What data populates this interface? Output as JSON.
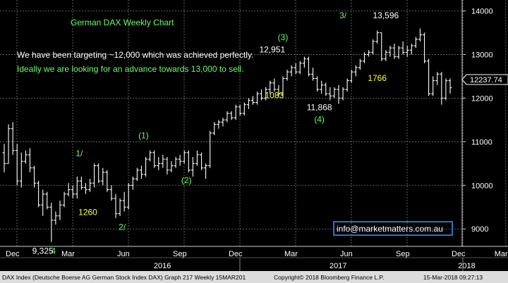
{
  "chart_data": {
    "type": "candlestick",
    "title": "German DAX Weekly Chart",
    "subtitle_lines": [
      "We have been targeting ~12,000 which was achieved perfectly.",
      "Ideally we are looking for an advance towards 13,000 to sell."
    ],
    "y_ticks": [
      "14000",
      "13000",
      "12000",
      "11000",
      "10000",
      "9000"
    ],
    "ylim": [
      8600,
      14250
    ],
    "x_month_labels": [
      "Dec",
      "Mar",
      "Jun",
      "Sep",
      "Dec",
      "Mar",
      "Jun",
      "Sep",
      "Dec",
      "Mar"
    ],
    "x_year_labels": [
      "2016",
      "2017",
      "2018"
    ],
    "last_price_label": "12237.74",
    "grid": true,
    "series": [
      [
        10750,
        10950,
        10300,
        10500
      ],
      [
        10500,
        11400,
        10500,
        11300
      ],
      [
        11300,
        11450,
        10700,
        10800
      ],
      [
        10800,
        10950,
        10000,
        10100
      ],
      [
        10100,
        10750,
        9950,
        10550
      ],
      [
        10550,
        10800,
        10500,
        10700
      ],
      [
        10700,
        10850,
        10300,
        10400
      ],
      [
        10400,
        10450,
        9950,
        10050
      ],
      [
        10050,
        10100,
        9500,
        9550
      ],
      [
        9550,
        9900,
        9300,
        9800
      ],
      [
        9800,
        9850,
        9450,
        9500
      ],
      [
        9500,
        9600,
        8700,
        9200
      ],
      [
        9200,
        9400,
        9100,
        9300
      ],
      [
        9300,
        9650,
        9200,
        9550
      ],
      [
        9550,
        9850,
        9500,
        9800
      ],
      [
        9800,
        10050,
        9750,
        9900
      ],
      [
        9900,
        10000,
        9700,
        9800
      ],
      [
        9800,
        10200,
        9700,
        10100
      ],
      [
        10100,
        10200,
        9900,
        9950
      ],
      [
        9950,
        10050,
        9800,
        9900
      ],
      [
        9900,
        10150,
        9850,
        10050
      ],
      [
        10050,
        10500,
        9950,
        10450
      ],
      [
        10450,
        10500,
        10050,
        10100
      ],
      [
        10100,
        10400,
        10000,
        10300
      ],
      [
        10300,
        10350,
        9850,
        9900
      ],
      [
        9900,
        10000,
        9650,
        9700
      ],
      [
        9700,
        9800,
        9250,
        9350
      ],
      [
        9350,
        9700,
        9300,
        9650
      ],
      [
        9650,
        9850,
        9400,
        9500
      ],
      [
        9500,
        10050,
        9450,
        10000
      ],
      [
        10000,
        10200,
        9900,
        10150
      ],
      [
        10150,
        10400,
        10100,
        10350
      ],
      [
        10350,
        10450,
        10150,
        10250
      ],
      [
        10250,
        10650,
        10200,
        10600
      ],
      [
        10600,
        10800,
        10550,
        10750
      ],
      [
        10750,
        10800,
        10400,
        10450
      ],
      [
        10450,
        10650,
        10350,
        10500
      ],
      [
        10500,
        10700,
        10400,
        10600
      ],
      [
        10600,
        10650,
        10250,
        10350
      ],
      [
        10350,
        10550,
        10300,
        10450
      ],
      [
        10450,
        10650,
        10400,
        10600
      ],
      [
        10600,
        10700,
        10450,
        10550
      ],
      [
        10550,
        10800,
        10500,
        10750
      ],
      [
        10750,
        10800,
        10300,
        10350
      ],
      [
        10350,
        10650,
        10200,
        10500
      ],
      [
        10500,
        10800,
        10450,
        10700
      ],
      [
        10700,
        10750,
        10350,
        10400
      ],
      [
        10400,
        10500,
        10150,
        10450
      ],
      [
        10450,
        11250,
        10400,
        11200
      ],
      [
        11200,
        11450,
        11150,
        11400
      ],
      [
        11400,
        11500,
        11300,
        11450
      ],
      [
        11450,
        11550,
        11350,
        11500
      ],
      [
        11500,
        11700,
        11450,
        11650
      ],
      [
        11650,
        11700,
        11500,
        11550
      ],
      [
        11550,
        11850,
        11500,
        11800
      ],
      [
        11800,
        11850,
        11600,
        11650
      ],
      [
        11650,
        11900,
        11600,
        11850
      ],
      [
        11850,
        12000,
        11750,
        11950
      ],
      [
        11950,
        12050,
        11850,
        11900
      ],
      [
        11900,
        12150,
        11850,
        12100
      ],
      [
        12100,
        12200,
        11950,
        12000
      ],
      [
        12000,
        12250,
        11950,
        12200
      ],
      [
        12200,
        12400,
        12100,
        12350
      ],
      [
        12350,
        12450,
        12150,
        12200
      ],
      [
        12200,
        12300,
        12050,
        12100
      ],
      [
        12100,
        12500,
        12050,
        12450
      ],
      [
        12450,
        12650,
        12400,
        12600
      ],
      [
        12600,
        12750,
        12500,
        12700
      ],
      [
        12700,
        12800,
        12550,
        12600
      ],
      [
        12600,
        12850,
        12550,
        12800
      ],
      [
        12800,
        12951,
        12700,
        12900
      ],
      [
        12900,
        12950,
        12500,
        12550
      ],
      [
        12550,
        12700,
        12400,
        12450
      ],
      [
        12450,
        12500,
        12150,
        12200
      ],
      [
        12200,
        12400,
        12100,
        12300
      ],
      [
        12300,
        12350,
        12050,
        12100
      ],
      [
        12100,
        12250,
        11950,
        12050
      ],
      [
        12050,
        12250,
        12000,
        12200
      ],
      [
        12200,
        12300,
        11868,
        12000
      ],
      [
        12000,
        12250,
        11950,
        12200
      ],
      [
        12200,
        12450,
        12150,
        12400
      ],
      [
        12400,
        12650,
        12350,
        12600
      ],
      [
        12600,
        12750,
        12500,
        12700
      ],
      [
        12700,
        12900,
        12650,
        12850
      ],
      [
        12850,
        13050,
        12800,
        13000
      ],
      [
        13000,
        13100,
        12950,
        13050
      ],
      [
        13050,
        13350,
        13000,
        13300
      ],
      [
        13300,
        13550,
        13250,
        13500
      ],
      [
        13500,
        13500,
        12850,
        12900
      ],
      [
        12900,
        13100,
        12850,
        13050
      ],
      [
        13050,
        13200,
        12950,
        13150
      ],
      [
        13150,
        13250,
        12900,
        12950
      ],
      [
        12950,
        13200,
        12900,
        13150
      ],
      [
        13150,
        13300,
        13000,
        13050
      ],
      [
        13050,
        13200,
        12950,
        13100
      ],
      [
        13100,
        13250,
        13000,
        13200
      ],
      [
        13200,
        13400,
        13150,
        13350
      ],
      [
        13350,
        13596,
        13300,
        13450
      ],
      [
        13450,
        13500,
        12800,
        12850
      ],
      [
        12850,
        12900,
        12050,
        12100
      ],
      [
        12100,
        12500,
        12050,
        12400
      ],
      [
        12400,
        12600,
        12300,
        12550
      ],
      [
        12550,
        12600,
        11850,
        12000
      ],
      [
        12000,
        12450,
        11950,
        12400
      ],
      [
        12400,
        12450,
        12100,
        12237.74
      ]
    ],
    "annotations": [
      {
        "text": "9,325",
        "x": 9,
        "y": 8430,
        "color": "#ffffff"
      },
      {
        "text": "4",
        "x": 11.5,
        "y": 8430,
        "color": "#66ff66"
      },
      {
        "text": "1/",
        "x": 17.5,
        "y": 10670,
        "color": "#66ff66"
      },
      {
        "text": "1260",
        "x": 19.5,
        "y": 9320,
        "color": "#ffff33"
      },
      {
        "text": "2/",
        "x": 27.5,
        "y": 8980,
        "color": "#66ff66"
      },
      {
        "text": "(1)",
        "x": 32.5,
        "y": 11080,
        "color": "#66ff66"
      },
      {
        "text": "(2)",
        "x": 42.5,
        "y": 10050,
        "color": "#66ff66"
      },
      {
        "text": "1083",
        "x": 63,
        "y": 12000,
        "color": "#ffff33"
      },
      {
        "text": "12,951",
        "x": 62.5,
        "y": 13050,
        "color": "#ffffff"
      },
      {
        "text": "(3)",
        "x": 65,
        "y": 13330,
        "color": "#66ff66"
      },
      {
        "text": "11,868",
        "x": 73.5,
        "y": 11720,
        "color": "#ffffff"
      },
      {
        "text": "(4)",
        "x": 73.5,
        "y": 11450,
        "color": "#66ff66"
      },
      {
        "text": "3/",
        "x": 79,
        "y": 13830,
        "color": "#66ff66"
      },
      {
        "text": "13,596",
        "x": 89,
        "y": 13830,
        "color": "#ffffff"
      },
      {
        "text": "1766",
        "x": 87,
        "y": 12390,
        "color": "#ffff33"
      }
    ]
  },
  "email_label": "info@marketmatters.com.au",
  "footer": {
    "left": "DAX Index (Deutsche Boerse AG German Stock Index DAX) Graph 217  Weekly 15MAR201",
    "middle": "Copyright© 2018 Bloomberg Finance L.P.",
    "right": "15-Mar-2018 09:27:13"
  },
  "colors": {
    "background": "#000000",
    "bars": "#ffffff",
    "grid": "#777777",
    "title": "#66ff66",
    "email_border": "#3399ff",
    "email_text": "#ffffff"
  }
}
